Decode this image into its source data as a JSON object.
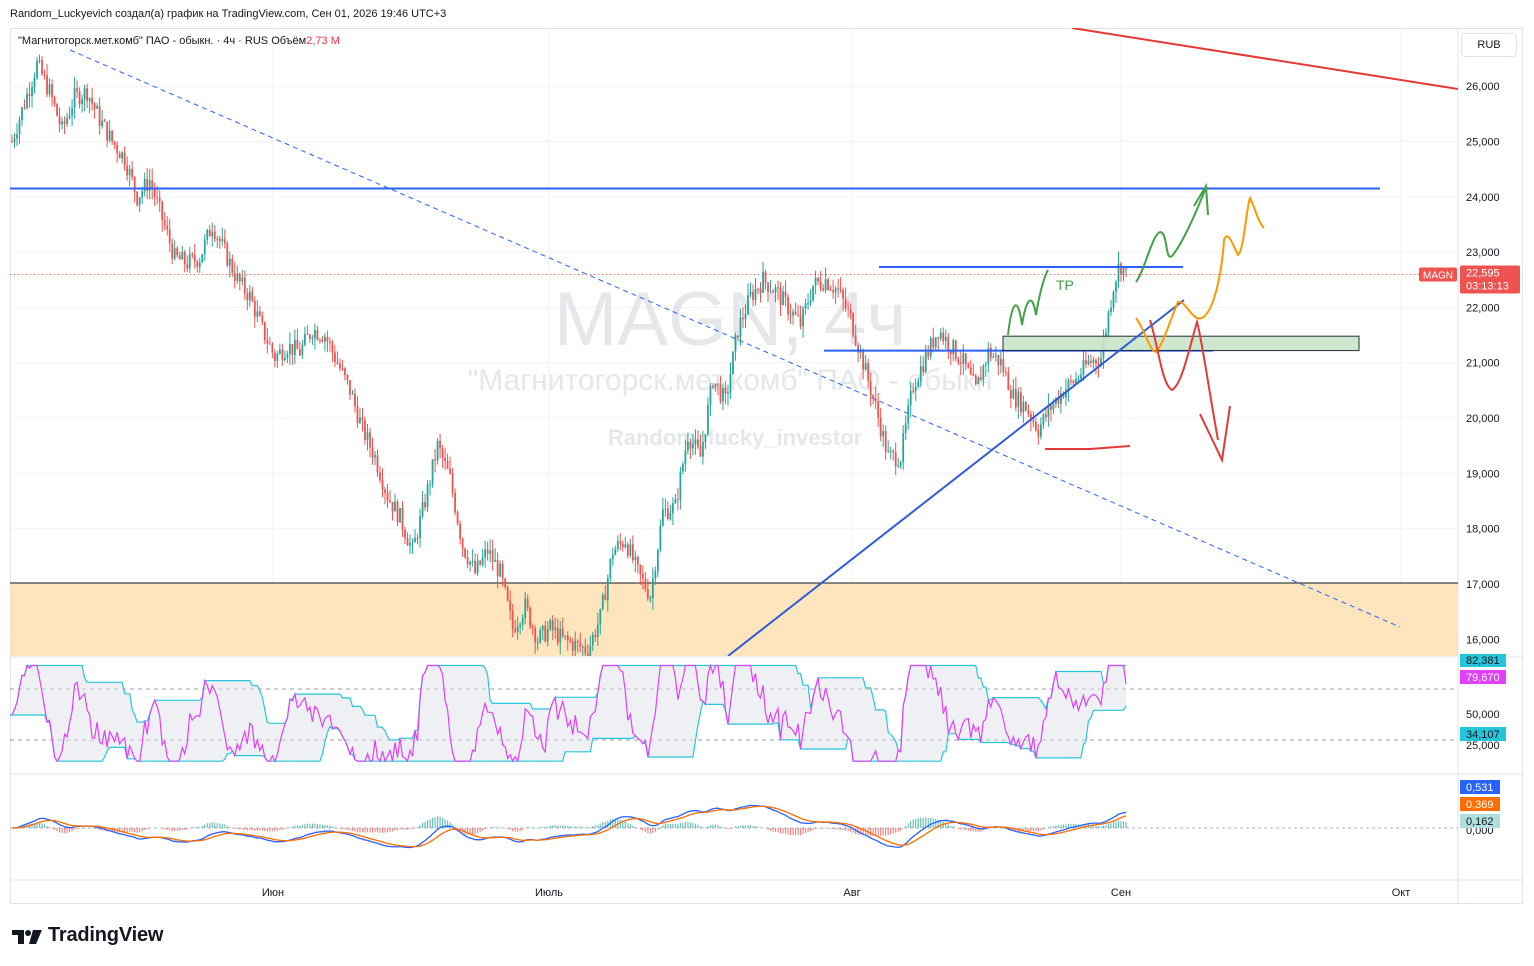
{
  "header": {
    "publish_line": "Random_Luckyevich создал(а) график на TradingView.com, Сен 01, 2026 19:46 UTC+3",
    "legend_symbol": "\"Магнитогорск.мет.комб\" ПАО - обыкн. · 4ч · RUS",
    "legend_volume_label": "Объём",
    "legend_volume_value": "2,73 M",
    "currency": "RUB"
  },
  "watermark": {
    "ticker": "MAGN, 4ч",
    "name": "\"Магнитогорск.мет.комб\" ПАО - обыкн",
    "author": "Random_lucky_investor"
  },
  "brand": {
    "logo_text": "TradingView"
  },
  "colors": {
    "up": "#26a69a",
    "down": "#ef5350",
    "level_blue": "#2962ff",
    "trendline": "#2e5bd6",
    "red_trend": "#e53935",
    "zone": "#ffe0b2",
    "box": "#c8e6c9",
    "rsi": "#e040fb",
    "channel": "#26c6da",
    "macd": "#2962ff",
    "signal": "#ff6d00",
    "green_arrow": "#43a047",
    "orange_arrow": "#ff9800",
    "red_arrow": "#e53935"
  },
  "annotations": {
    "tp_label": "TP"
  },
  "price_axis": {
    "ticks": [
      "26,000",
      "25,000",
      "24,000",
      "23,000",
      "22,000",
      "21,000",
      "20,000",
      "19,000",
      "18,000",
      "17,000",
      "16,000"
    ],
    "tick_values": [
      26000,
      25000,
      24000,
      23000,
      22000,
      21000,
      20000,
      19000,
      18000,
      17000,
      16000
    ],
    "range": [
      15700,
      27050
    ],
    "last_price_badge": {
      "symbol": "MAGN",
      "value": "22,595",
      "countdown": "03:13:13",
      "price": 22595
    }
  },
  "osc1": {
    "ticks": [
      "50,000",
      "25,000"
    ],
    "badges": [
      "82,381",
      "79,670",
      "34,107"
    ]
  },
  "osc2": {
    "ticks": [
      "0,000"
    ],
    "badges": [
      "0,531",
      "0,369",
      "0,162"
    ]
  },
  "time_axis": {
    "labels": [
      "Июн",
      "Июль",
      "Авг",
      "Сен",
      "Окт"
    ]
  },
  "chart_data": {
    "type": "candlestick",
    "x": [
      "Июн",
      "Июль",
      "Авг",
      "Сен",
      "Окт"
    ],
    "y_range": [
      15700,
      27050
    ],
    "last_price": 22595,
    "levels": [
      {
        "name": "resistance",
        "price": 24150
      },
      {
        "name": "range_top",
        "price": 22730
      },
      {
        "name": "range_bottom",
        "price": 21220
      },
      {
        "name": "support_zone_top",
        "price": 17020
      }
    ],
    "green_box": {
      "from_price": 21220,
      "to_price": 21480
    },
    "path": [
      [
        0,
        25000
      ],
      [
        10,
        25700
      ],
      [
        20,
        26400
      ],
      [
        30,
        25900
      ],
      [
        40,
        25200
      ],
      [
        50,
        25800
      ],
      [
        60,
        25900
      ],
      [
        70,
        25400
      ],
      [
        80,
        25000
      ],
      [
        90,
        24700
      ],
      [
        100,
        24000
      ],
      [
        110,
        24300
      ],
      [
        120,
        23600
      ],
      [
        130,
        22900
      ],
      [
        140,
        22800
      ],
      [
        150,
        22900
      ],
      [
        160,
        23500
      ],
      [
        170,
        23000
      ],
      [
        180,
        22500
      ],
      [
        190,
        22200
      ],
      [
        200,
        21600
      ],
      [
        210,
        21100
      ],
      [
        220,
        21300
      ],
      [
        230,
        21200
      ],
      [
        240,
        21600
      ],
      [
        250,
        21500
      ],
      [
        260,
        21000
      ],
      [
        270,
        20500
      ],
      [
        280,
        19800
      ],
      [
        290,
        19300
      ],
      [
        300,
        18600
      ],
      [
        310,
        18200
      ],
      [
        320,
        17600
      ],
      [
        330,
        18500
      ],
      [
        340,
        19500
      ],
      [
        350,
        18900
      ],
      [
        360,
        17700
      ],
      [
        370,
        17200
      ],
      [
        380,
        17600
      ],
      [
        390,
        17200
      ],
      [
        400,
        16200
      ],
      [
        410,
        16600
      ],
      [
        420,
        16000
      ],
      [
        430,
        16200
      ],
      [
        440,
        16000
      ],
      [
        450,
        15900
      ],
      [
        460,
        15800
      ],
      [
        470,
        16400
      ],
      [
        480,
        17600
      ],
      [
        490,
        17800
      ],
      [
        500,
        17200
      ],
      [
        510,
        16800
      ],
      [
        520,
        18300
      ],
      [
        530,
        18400
      ],
      [
        540,
        19700
      ],
      [
        550,
        19300
      ],
      [
        560,
        20700
      ],
      [
        570,
        20300
      ],
      [
        580,
        21600
      ],
      [
        590,
        22200
      ],
      [
        600,
        22500
      ],
      [
        610,
        22300
      ],
      [
        620,
        22000
      ],
      [
        630,
        21700
      ],
      [
        640,
        22400
      ],
      [
        650,
        22500
      ],
      [
        660,
        22300
      ],
      [
        670,
        21800
      ],
      [
        680,
        21000
      ],
      [
        690,
        20200
      ],
      [
        700,
        19300
      ],
      [
        710,
        19300
      ],
      [
        720,
        20600
      ],
      [
        730,
        21100
      ],
      [
        740,
        21600
      ],
      [
        750,
        21300
      ],
      [
        760,
        21000
      ],
      [
        770,
        20500
      ],
      [
        780,
        21200
      ],
      [
        790,
        21000
      ],
      [
        800,
        20400
      ],
      [
        810,
        20200
      ],
      [
        820,
        19800
      ],
      [
        830,
        20200
      ],
      [
        840,
        20500
      ],
      [
        850,
        20700
      ],
      [
        860,
        21000
      ],
      [
        870,
        21100
      ],
      [
        880,
        22400
      ],
      [
        885,
        22800
      ],
      [
        890,
        22595
      ]
    ]
  }
}
